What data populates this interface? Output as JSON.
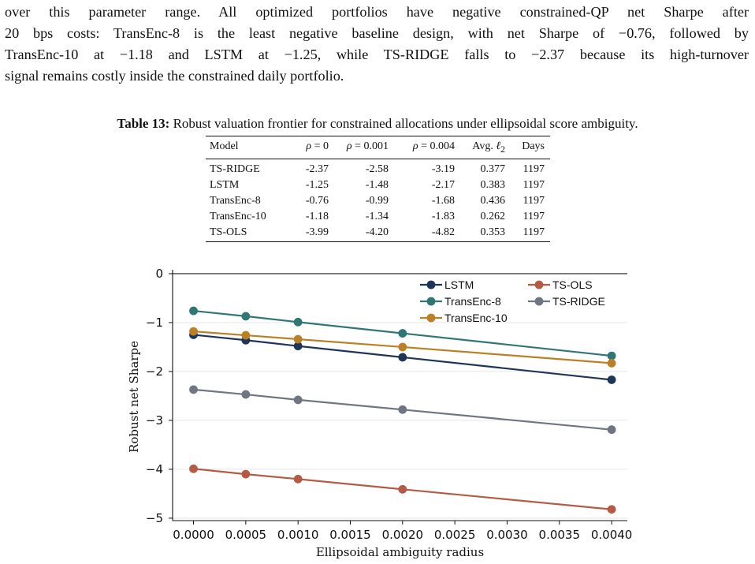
{
  "paragraph": {
    "lines": [
      "over this parameter range. All optimized portfolios have negative constrained-QP net Sharpe after",
      "20 bps costs: TransEnc-8 is the least negative baseline design, with net Sharpe of −0.76, followed by",
      "TransEnc-10 at −1.18 and LSTM at −1.25, while TS-RIDGE falls to −2.37 because its high-turnover",
      "signal remains costly inside the constrained daily portfolio."
    ]
  },
  "table": {
    "label": "Table 13:",
    "caption": " Robust valuation frontier for constrained allocations under ellipsoidal score ambiguity.",
    "headers": {
      "model": "Model",
      "rho_symbol": "ρ",
      "rho_eq0": " = 0",
      "rho_eq001": " = 0.001",
      "rho_eq004": " = 0.004",
      "avg_prefix": "Avg. ",
      "avg_ell": "ℓ",
      "avg_sub": "2",
      "days": "Days"
    },
    "rows": [
      {
        "model": "TS-RIDGE",
        "rho0": "-2.37",
        "rho001": "-2.58",
        "rho004": "-3.19",
        "avg": "0.377",
        "days": "1197"
      },
      {
        "model": "LSTM",
        "rho0": "-1.25",
        "rho001": "-1.48",
        "rho004": "-2.17",
        "avg": "0.383",
        "days": "1197"
      },
      {
        "model": "TransEnc-8",
        "rho0": "-0.76",
        "rho001": "-0.99",
        "rho004": "-1.68",
        "avg": "0.436",
        "days": "1197"
      },
      {
        "model": "TransEnc-10",
        "rho0": "-1.18",
        "rho001": "-1.34",
        "rho004": "-1.83",
        "avg": "0.262",
        "days": "1197"
      },
      {
        "model": "TS-OLS",
        "rho0": "-3.99",
        "rho001": "-4.20",
        "rho004": "-4.82",
        "avg": "0.353",
        "days": "1197"
      }
    ]
  },
  "chart_data": {
    "type": "line",
    "xlabel": "Ellipsoidal ambiguity radius",
    "ylabel": "Robust net Sharpe",
    "xlim": [
      -0.0002,
      0.00415
    ],
    "ylim": [
      -5.05,
      0.08
    ],
    "x_ticks": [
      "0.0000",
      "0.0005",
      "0.0010",
      "0.0015",
      "0.0020",
      "0.0025",
      "0.0030",
      "0.0035",
      "0.0040"
    ],
    "y_ticks": [
      "0",
      "−1",
      "−2",
      "−3",
      "−4",
      "−5"
    ],
    "grid": "horizontal",
    "legend_position": "top-right",
    "x": [
      0.0,
      0.0005,
      0.001,
      0.002,
      0.004
    ],
    "series": [
      {
        "name": "LSTM",
        "color": "#1f3558",
        "values": [
          -1.25,
          -1.36,
          -1.48,
          -1.71,
          -2.17
        ]
      },
      {
        "name": "TransEnc-8",
        "color": "#2f7775",
        "values": [
          -0.76,
          -0.87,
          -0.99,
          -1.22,
          -1.68
        ]
      },
      {
        "name": "TransEnc-10",
        "color": "#bb8026",
        "values": [
          -1.18,
          -1.26,
          -1.34,
          -1.5,
          -1.83
        ]
      },
      {
        "name": "TS-OLS",
        "color": "#b45b45",
        "values": [
          -3.99,
          -4.1,
          -4.2,
          -4.41,
          -4.82
        ]
      },
      {
        "name": "TS-RIDGE",
        "color": "#707582",
        "values": [
          -2.37,
          -2.47,
          -2.58,
          -2.78,
          -3.19
        ]
      }
    ]
  }
}
